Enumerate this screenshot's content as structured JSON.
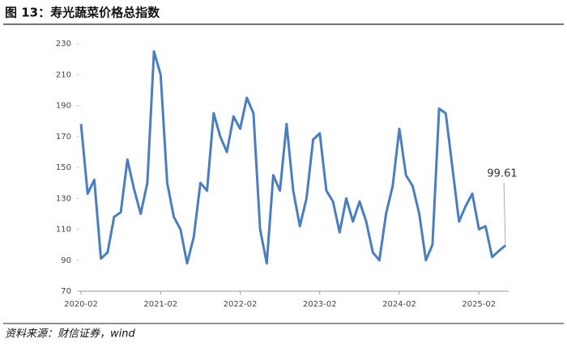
{
  "chart_data": {
    "type": "line",
    "title": "图 13：寿光蔬菜价格总指数",
    "source": "资料来源：财信证券，wind",
    "categories": [
      "2020-02",
      null,
      null,
      null,
      null,
      null,
      null,
      null,
      null,
      null,
      null,
      null,
      "2021-02",
      null,
      null,
      null,
      null,
      null,
      null,
      null,
      null,
      null,
      null,
      null,
      "2022-02",
      null,
      null,
      null,
      null,
      null,
      null,
      null,
      null,
      null,
      null,
      null,
      "2023-02",
      null,
      null,
      null,
      null,
      null,
      null,
      null,
      null,
      null,
      null,
      null,
      "2024-02",
      null,
      null,
      null,
      null,
      null,
      null,
      null,
      null,
      null,
      null,
      null,
      "2025-02",
      null,
      null,
      null,
      null
    ],
    "values": [
      178,
      133,
      142,
      91,
      95,
      118,
      121,
      155,
      136,
      120,
      140,
      225,
      210,
      140,
      118,
      110,
      88,
      105,
      140,
      135,
      185,
      170,
      160,
      183,
      175,
      195,
      185,
      110,
      88,
      145,
      135,
      178,
      135,
      112,
      130,
      168,
      172,
      135,
      128,
      108,
      130,
      115,
      128,
      115,
      95,
      90,
      120,
      138,
      175,
      145,
      138,
      120,
      90,
      100,
      188,
      185,
      150,
      115,
      125,
      133,
      110,
      112,
      92,
      96,
      99.61
    ],
    "color": "#4a7ebf",
    "ylim": [
      70,
      230
    ],
    "yticks": [
      70,
      90,
      110,
      130,
      150,
      170,
      190,
      210,
      230
    ]
  }
}
